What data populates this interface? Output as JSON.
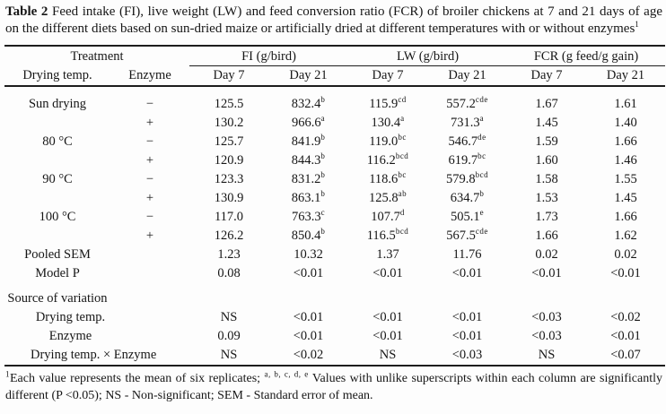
{
  "caption": {
    "label": "Table 2",
    "body": " Feed intake (FI), live weight (LW) and feed conversion ratio (FCR) of broiler chickens at 7 and 21 days of age on the different diets based on sun-dried maize or artificially dried at different temperatures with or without enzymes",
    "footnote_marker": "1"
  },
  "table": {
    "group_headers": [
      {
        "label": "Treatment"
      },
      {
        "label": "FI (g/bird)"
      },
      {
        "label": "LW (g/bird)"
      },
      {
        "label": "FCR (g feed/g gain)"
      }
    ],
    "sub_headers": [
      "Drying temp.",
      "Enzyme",
      "Day 7",
      "Day 21",
      "Day 7",
      "Day 21",
      "Day 7",
      "Day 21"
    ],
    "rows": [
      {
        "label": "Sun drying",
        "indent": false,
        "section": false,
        "enzyme": "−",
        "cells": [
          [
            "125.5",
            ""
          ],
          [
            "832.4",
            "b"
          ],
          [
            "115.9",
            "cd"
          ],
          [
            "557.2",
            "cde"
          ],
          [
            "1.67",
            ""
          ],
          [
            "1.61",
            ""
          ]
        ]
      },
      {
        "label": "",
        "indent": false,
        "section": false,
        "enzyme": "+",
        "cells": [
          [
            "130.2",
            ""
          ],
          [
            "966.6",
            "a"
          ],
          [
            "130.4",
            "a"
          ],
          [
            "731.3",
            "a"
          ],
          [
            "1.45",
            ""
          ],
          [
            "1.40",
            ""
          ]
        ]
      },
      {
        "label": "80 °C",
        "indent": false,
        "section": false,
        "enzyme": "−",
        "cells": [
          [
            "125.7",
            ""
          ],
          [
            "841.9",
            "b"
          ],
          [
            "119.0",
            "bc"
          ],
          [
            "546.7",
            "de"
          ],
          [
            "1.59",
            ""
          ],
          [
            "1.66",
            ""
          ]
        ]
      },
      {
        "label": "",
        "indent": false,
        "section": false,
        "enzyme": "+",
        "cells": [
          [
            "120.9",
            ""
          ],
          [
            "844.3",
            "b"
          ],
          [
            "116.2",
            "bcd"
          ],
          [
            "619.7",
            "bc"
          ],
          [
            "1.60",
            ""
          ],
          [
            "1.46",
            ""
          ]
        ]
      },
      {
        "label": "90 °C",
        "indent": false,
        "section": false,
        "enzyme": "−",
        "cells": [
          [
            "123.3",
            ""
          ],
          [
            "831.2",
            "b"
          ],
          [
            "118.6",
            "bc"
          ],
          [
            "579.8",
            "bcd"
          ],
          [
            "1.58",
            ""
          ],
          [
            "1.55",
            ""
          ]
        ]
      },
      {
        "label": "",
        "indent": false,
        "section": false,
        "enzyme": "+",
        "cells": [
          [
            "130.9",
            ""
          ],
          [
            "863.1",
            "b"
          ],
          [
            "125.8",
            "ab"
          ],
          [
            "634.7",
            "b"
          ],
          [
            "1.53",
            ""
          ],
          [
            "1.45",
            ""
          ]
        ]
      },
      {
        "label": "100 °C",
        "indent": false,
        "section": false,
        "enzyme": "−",
        "cells": [
          [
            "117.0",
            ""
          ],
          [
            "763.3",
            "c"
          ],
          [
            "107.7",
            "d"
          ],
          [
            "505.1",
            "e"
          ],
          [
            "1.73",
            ""
          ],
          [
            "1.66",
            ""
          ]
        ]
      },
      {
        "label": "",
        "indent": false,
        "section": false,
        "enzyme": "+",
        "cells": [
          [
            "126.2",
            ""
          ],
          [
            "850.4",
            "b"
          ],
          [
            "116.5",
            "bcd"
          ],
          [
            "567.5",
            "cde"
          ],
          [
            "1.66",
            ""
          ],
          [
            "1.62",
            ""
          ]
        ]
      },
      {
        "label": "Pooled SEM",
        "indent": false,
        "section": false,
        "enzyme": "",
        "cells": [
          [
            "1.23",
            ""
          ],
          [
            "10.32",
            ""
          ],
          [
            "1.37",
            ""
          ],
          [
            "11.76",
            ""
          ],
          [
            "0.02",
            ""
          ],
          [
            "0.02",
            ""
          ]
        ]
      },
      {
        "label": "Model P",
        "indent": false,
        "section": false,
        "enzyme": "",
        "cells": [
          [
            "0.08",
            ""
          ],
          [
            "<0.01",
            ""
          ],
          [
            "<0.01",
            ""
          ],
          [
            "<0.01",
            ""
          ],
          [
            "<0.01",
            ""
          ],
          [
            "<0.01",
            ""
          ]
        ]
      },
      {
        "label": "Source of variation",
        "indent": false,
        "section": true,
        "enzyme": "",
        "cells": [
          [
            "",
            ""
          ],
          [
            "",
            ""
          ],
          [
            "",
            ""
          ],
          [
            "",
            ""
          ],
          [
            "",
            ""
          ],
          [
            "",
            ""
          ]
        ]
      },
      {
        "label": "Drying temp.",
        "indent": true,
        "section": false,
        "enzyme": "",
        "cells": [
          [
            "NS",
            ""
          ],
          [
            "<0.01",
            ""
          ],
          [
            "<0.01",
            ""
          ],
          [
            "<0.01",
            ""
          ],
          [
            "<0.03",
            ""
          ],
          [
            "<0.02",
            ""
          ]
        ]
      },
      {
        "label": "Enzyme",
        "indent": true,
        "section": false,
        "enzyme": "",
        "cells": [
          [
            "0.09",
            ""
          ],
          [
            "<0.01",
            ""
          ],
          [
            "<0.01",
            ""
          ],
          [
            "<0.01",
            ""
          ],
          [
            "<0.03",
            ""
          ],
          [
            "<0.01",
            ""
          ]
        ]
      },
      {
        "label": "Drying temp. × Enzyme",
        "indent": true,
        "section": false,
        "enzyme": "",
        "cells": [
          [
            "NS",
            ""
          ],
          [
            "<0.02",
            ""
          ],
          [
            "NS",
            ""
          ],
          [
            "<0.03",
            ""
          ],
          [
            "NS",
            ""
          ],
          [
            "<0.07",
            ""
          ]
        ]
      }
    ]
  },
  "footnote": {
    "marker": "1",
    "text_before_sup": "Each value represents the mean of six replicates; ",
    "sup": "a, b, c, d, e",
    "text_after_sup": " Values with unlike superscripts within each column are significantly different (P <0.05); NS - Non-significant; SEM - Standard error of mean."
  },
  "colors": {
    "page_background": "#fdfdfd",
    "text": "#161616",
    "rule": "#1d1d1d"
  }
}
